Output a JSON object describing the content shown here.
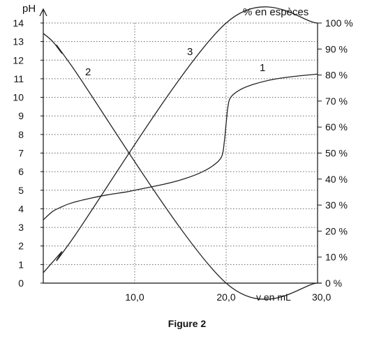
{
  "chart_data": {
    "type": "line",
    "caption": "Figure 2",
    "left_axis": {
      "label": "pH",
      "range": [
        0,
        14
      ],
      "ticks": [
        "0",
        "1",
        "2",
        "3",
        "4",
        "5",
        "6",
        "7",
        "8",
        "9",
        "10",
        "11",
        "12",
        "13",
        "14"
      ]
    },
    "right_axis": {
      "label": "% en espèces",
      "range": [
        0,
        100
      ],
      "ticks": [
        "0 %",
        "10 %",
        "20 %",
        "30 %",
        "40 %",
        "50 %",
        "60 %",
        "70 %",
        "80 %",
        "90 %",
        "100 %"
      ]
    },
    "x_axis": {
      "label": "v en mL",
      "range": [
        0,
        30
      ],
      "ticks": [
        "10,0",
        "20,0",
        "30,0"
      ]
    },
    "grid": "dotted",
    "series": [
      {
        "name": "1",
        "axis": "left",
        "points": [
          [
            0,
            3.4
          ],
          [
            1,
            3.85
          ],
          [
            2,
            4.1
          ],
          [
            3,
            4.3
          ],
          [
            5,
            4.55
          ],
          [
            7,
            4.75
          ],
          [
            9,
            4.9
          ],
          [
            10,
            5.0
          ],
          [
            11,
            5.1
          ],
          [
            13,
            5.3
          ],
          [
            15,
            5.55
          ],
          [
            17,
            5.9
          ],
          [
            18.5,
            6.3
          ],
          [
            19.5,
            6.8
          ],
          [
            19.8,
            7.6
          ],
          [
            20,
            8.6
          ],
          [
            20.2,
            9.5
          ],
          [
            20.5,
            10.0
          ],
          [
            21.5,
            10.4
          ],
          [
            23,
            10.7
          ],
          [
            25,
            10.95
          ],
          [
            27,
            11.1
          ],
          [
            30,
            11.25
          ]
        ]
      },
      {
        "name": "2",
        "axis": "right",
        "points": [
          [
            0,
            96
          ],
          [
            1,
            93
          ],
          [
            2,
            88.5
          ],
          [
            3,
            84
          ],
          [
            20,
            0
          ],
          [
            30,
            0
          ]
        ]
      },
      {
        "name": "3",
        "axis": "right",
        "points": [
          [
            0,
            4
          ],
          [
            1,
            8
          ],
          [
            2,
            12
          ],
          [
            3,
            16
          ],
          [
            20,
            100
          ],
          [
            30,
            100
          ]
        ]
      }
    ]
  }
}
